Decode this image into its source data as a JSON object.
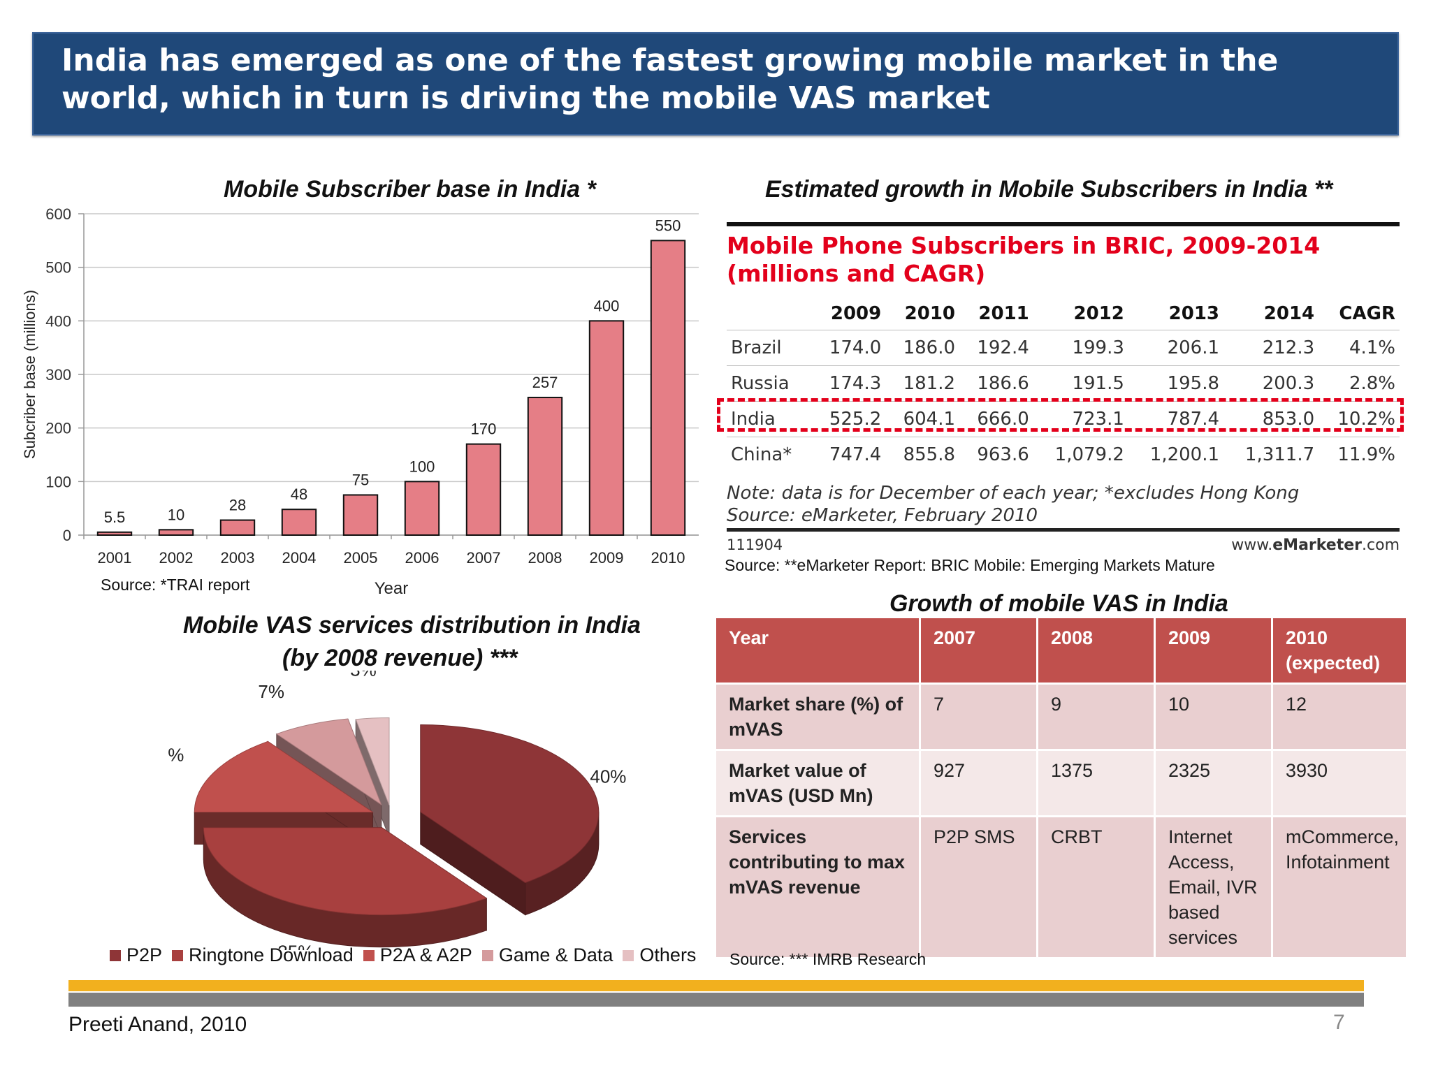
{
  "header": {
    "title": "India has emerged as one of the fastest growing mobile market in the world, which in turn is driving the mobile VAS market"
  },
  "subscriber_chart": {
    "section_title": "Mobile Subscriber base in India *",
    "source": "Source: *TRAI report"
  },
  "bric": {
    "section_title": "Estimated growth in Mobile Subscribers in India **",
    "table_title": "Mobile Phone Subscribers in BRIC, 2009-2014 (millions and CAGR)",
    "headers": [
      "",
      "2009",
      "2010",
      "2011",
      "2012",
      "2013",
      "2014",
      "CAGR"
    ],
    "rows": [
      [
        "Brazil",
        "174.0",
        "186.0",
        "192.4",
        "199.3",
        "206.1",
        "212.3",
        "4.1%"
      ],
      [
        "Russia",
        "174.3",
        "181.2",
        "186.6",
        "191.5",
        "195.8",
        "200.3",
        "2.8%"
      ],
      [
        "India",
        "525.2",
        "604.1",
        "666.0",
        "723.1",
        "787.4",
        "853.0",
        "10.2%"
      ],
      [
        "China*",
        "747.4",
        "855.8",
        "963.6",
        "1,079.2",
        "1,200.1",
        "1,311.7",
        "11.9%"
      ]
    ],
    "note_line1": "Note: data is for December of each year; *excludes Hong Kong",
    "note_line2": "Source: eMarketer, February 2010",
    "code": "111904",
    "brand_prefix": "www.",
    "brand_bold": "eMarketer",
    "brand_suffix": ".com",
    "source": "Source: **eMarketer Report: BRIC Mobile: Emerging Markets Mature",
    "highlight_color": "#e3001b"
  },
  "vas_pie": {
    "title_line1": "Mobile VAS services distribution in India",
    "title_line2": "(by 2008 revenue)   ***"
  },
  "vas_table": {
    "section_title": "Growth of mobile VAS in India",
    "headers": [
      "Year",
      "2007",
      "2008",
      "2009",
      "2010 (expected)"
    ],
    "rows": [
      [
        "Market share (%) of mVAS",
        "7",
        "9",
        "10",
        "12"
      ],
      [
        "Market value of mVAS (USD Mn)",
        "927",
        "1375",
        "2325",
        "3930"
      ],
      [
        "Services contributing to max mVAS revenue",
        "P2P SMS",
        "CRBT",
        "Internet Access, Email, IVR based services",
        "mCommerce, Infotainment"
      ]
    ],
    "source": "Source: *** IMRB Research"
  },
  "footer": {
    "author": "Preeti Anand, 2010",
    "page": "7"
  },
  "chart_data": [
    {
      "type": "bar",
      "categories": [
        "2001",
        "2002",
        "2003",
        "2004",
        "2005",
        "2006",
        "2007",
        "2008",
        "2009",
        "2010"
      ],
      "values": [
        5.5,
        10,
        28,
        48,
        75,
        100,
        170,
        257,
        400,
        550
      ],
      "labels": [
        "5.5",
        "10",
        "28",
        "48",
        "75",
        "100",
        "170",
        "257",
        "400",
        "550"
      ],
      "xlabel": "Year",
      "ylabel": "Subcriber base (millions)",
      "ylim": [
        0,
        600
      ],
      "yticks": [
        0,
        100,
        200,
        300,
        400,
        500,
        600
      ],
      "grid": true,
      "bar_color": "#e57e86"
    },
    {
      "type": "pie",
      "categories": [
        "P2P",
        "Ringtone Download",
        "P2A & A2P",
        "Game & Data",
        "Others"
      ],
      "values": [
        40,
        35,
        15,
        7,
        3
      ],
      "labels": [
        "40%",
        "35%",
        "15%",
        "7%",
        "3%"
      ],
      "colors": [
        "#8e3537",
        "#a8403f",
        "#c0504d",
        "#d49a9c",
        "#e5c0c2"
      ],
      "legend": "bottom"
    }
  ]
}
